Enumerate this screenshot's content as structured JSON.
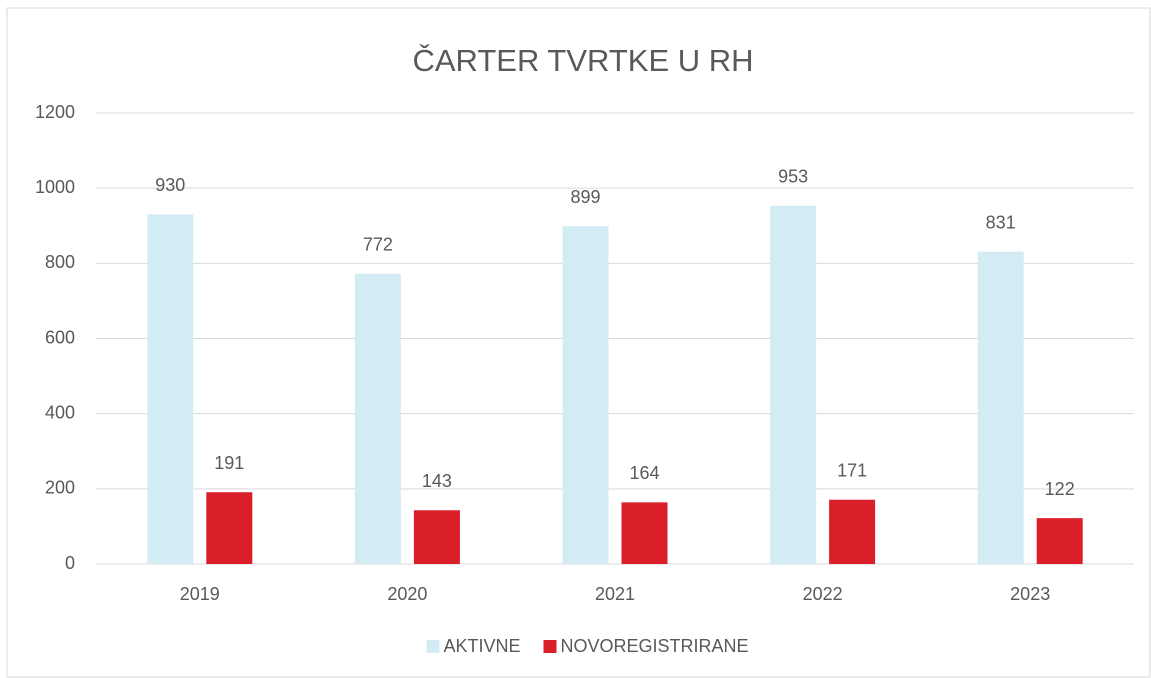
{
  "chart_data": {
    "type": "bar",
    "title": "ČARTER TVRTKE U RH",
    "categories": [
      "2019",
      "2020",
      "2021",
      "2022",
      "2023"
    ],
    "series": [
      {
        "name": "AKTIVNE",
        "color": "#d3ecf3",
        "values": [
          930,
          772,
          899,
          953,
          831
        ]
      },
      {
        "name": "NOVOREGISTRIRANE",
        "color": "#da1f2a",
        "values": [
          191,
          143,
          164,
          171,
          122
        ]
      }
    ],
    "ylim": [
      0,
      1200
    ],
    "yticks": [
      0,
      200,
      400,
      600,
      800,
      1000,
      1200
    ],
    "grid": true,
    "legend": "bottom"
  }
}
